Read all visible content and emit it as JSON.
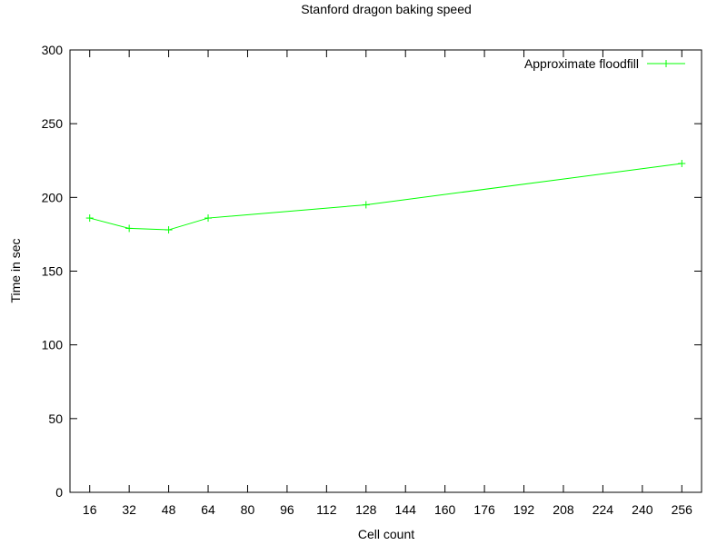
{
  "chart_data": {
    "type": "line",
    "title": "Stanford dragon baking speed",
    "xlabel": "Cell count",
    "ylabel": "Time in sec",
    "xlim": [
      8,
      264
    ],
    "ylim": [
      0,
      300
    ],
    "x_ticks": [
      16,
      32,
      48,
      64,
      80,
      96,
      112,
      128,
      144,
      160,
      176,
      192,
      208,
      224,
      240,
      256
    ],
    "y_ticks": [
      0,
      50,
      100,
      150,
      200,
      250,
      300
    ],
    "grid": false,
    "legend_position": "top-right",
    "series": [
      {
        "name": "Approximate floodfill",
        "color": "#00ff00",
        "marker": "plus",
        "points": [
          {
            "x": 16,
            "y": 186
          },
          {
            "x": 32,
            "y": 179
          },
          {
            "x": 48,
            "y": 178
          },
          {
            "x": 64,
            "y": 186
          },
          {
            "x": 128,
            "y": 195
          },
          {
            "x": 256,
            "y": 223
          }
        ]
      }
    ]
  }
}
